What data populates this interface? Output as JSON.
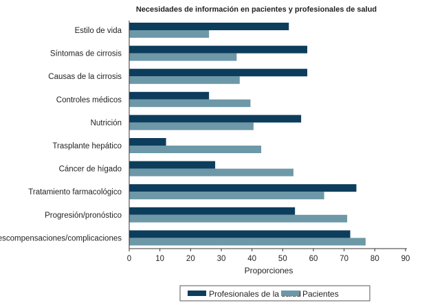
{
  "chart_data": {
    "type": "bar",
    "orientation": "horizontal",
    "title": "Necesidades de información en pacientes y profesionales de salud",
    "xlabel": "Proporciones",
    "ylabel": "",
    "xlim": [
      0,
      90
    ],
    "xticks": [
      "0",
      "10",
      "20",
      "30",
      "40",
      "50",
      "60",
      "70",
      "80",
      "90"
    ],
    "grid": false,
    "legend_position": "bottom",
    "categories": [
      "Estilo de vida",
      "Síntomas de cirrosis",
      "Causas de la cirrosis",
      "Controles médicos",
      "Nutrición",
      "Trasplante hepático",
      "Cáncer de hígado",
      "Tratamiento farmacológico",
      "Progresión/pronóstico",
      "Descompensaciones/complicaciones"
    ],
    "series": [
      {
        "name": "Profesionales de la salud",
        "color": "#0d3d5c",
        "values": [
          52,
          58,
          58,
          26,
          56,
          12,
          28,
          74,
          54,
          72
        ]
      },
      {
        "name": "Pacientes",
        "color": "#6d98a8",
        "values": [
          26,
          35,
          36,
          39.5,
          40.5,
          43,
          53.5,
          63.5,
          71,
          77
        ]
      }
    ]
  }
}
